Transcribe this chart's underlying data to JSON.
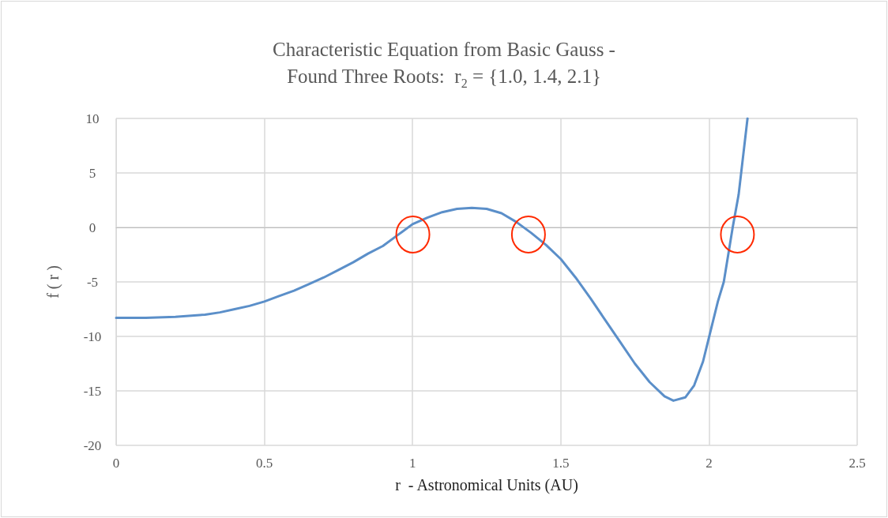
{
  "chart_data": {
    "type": "line",
    "title": "Characteristic Equation from Basic Gauss -\nFound Three Roots:  r$_{2}$ = {1.0, 1.4, 2.1}",
    "xlabel": "r  - Astronomical Units (AU)",
    "ylabel": "f ( r )",
    "x": [
      0,
      0.1,
      0.2,
      0.3,
      0.35,
      0.4,
      0.45,
      0.5,
      0.55,
      0.6,
      0.65,
      0.7,
      0.75,
      0.8,
      0.85,
      0.9,
      0.95,
      1.0,
      1.05,
      1.1,
      1.15,
      1.2,
      1.25,
      1.3,
      1.35,
      1.4,
      1.45,
      1.5,
      1.55,
      1.6,
      1.65,
      1.7,
      1.75,
      1.8,
      1.85,
      1.88,
      1.92,
      1.95,
      1.98,
      2.0,
      2.03,
      2.05,
      2.08,
      2.1,
      2.13
    ],
    "series": [
      {
        "color": "#5b8fc9",
        "values": [
          -8.3,
          -8.3,
          -8.2,
          -8.0,
          -7.8,
          -7.5,
          -7.2,
          -6.8,
          -6.3,
          -5.8,
          -5.2,
          -4.6,
          -3.9,
          -3.2,
          -2.4,
          -1.7,
          -0.7,
          0.3,
          0.9,
          1.4,
          1.7,
          1.8,
          1.7,
          1.3,
          0.5,
          -0.5,
          -1.6,
          -2.9,
          -4.6,
          -6.5,
          -8.5,
          -10.5,
          -12.5,
          -14.2,
          -15.5,
          -15.9,
          -15.6,
          -14.5,
          -12.3,
          -10.1,
          -6.8,
          -5,
          0,
          3,
          10
        ]
      }
    ],
    "xlim": [
      0,
      2.5
    ],
    "xticks": [
      0,
      0.5,
      1,
      1.5,
      2,
      2.5
    ],
    "ylim": [
      -20,
      10
    ],
    "yticks": [
      -20,
      -15,
      -10,
      -5,
      0,
      5,
      10
    ],
    "grid": true,
    "marker": "none",
    "line_style": "solid"
  }
}
